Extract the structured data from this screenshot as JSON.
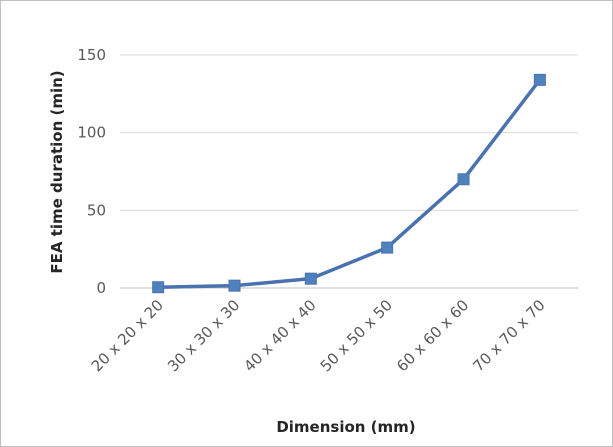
{
  "chart_data": {
    "type": "line",
    "title": "",
    "xlabel": "Dimension (mm)",
    "ylabel": "FEA time duration (min)",
    "categories": [
      "20 x 20 x 20",
      "30 x 30 x 30",
      "40 x 40 x 40",
      "50 x 50 x 50",
      "60 x 60 x 60",
      "70 x 70 x 70"
    ],
    "series": [
      {
        "values": [
          0.5,
          1.5,
          6,
          26,
          70,
          134
        ]
      }
    ],
    "ylim": [
      0,
      150
    ],
    "yticks": [
      "0",
      "50",
      "100",
      "150"
    ],
    "grid": true,
    "legend": "none",
    "colors": {
      "line": "#4a72b0",
      "marker": "#4f81bd",
      "grid": "#d9d9d9",
      "axis": "#bfbfbf"
    }
  }
}
